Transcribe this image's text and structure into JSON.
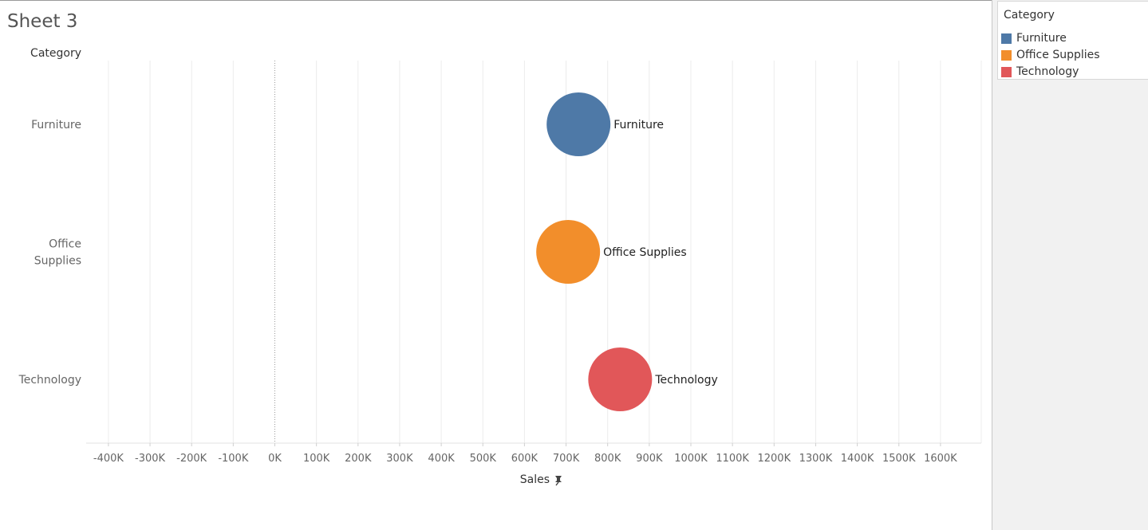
{
  "sheet": {
    "title": "Sheet 3"
  },
  "chart_data": {
    "type": "scatter",
    "row_header": "Category",
    "xlabel": "Sales",
    "xlim": [
      -450000,
      1700000
    ],
    "x_ticks": [
      -400000,
      -300000,
      -200000,
      -100000,
      0,
      100000,
      200000,
      300000,
      400000,
      500000,
      600000,
      700000,
      800000,
      900000,
      1000000,
      1100000,
      1200000,
      1300000,
      1400000,
      1500000,
      1600000
    ],
    "x_tick_labels": [
      "-400K",
      "-300K",
      "-200K",
      "-100K",
      "0K",
      "100K",
      "200K",
      "300K",
      "400K",
      "500K",
      "600K",
      "700K",
      "800K",
      "900K",
      "1000K",
      "1100K",
      "1200K",
      "1300K",
      "1400K",
      "1500K",
      "1600K"
    ],
    "categories": [
      "Furniture",
      "Office Supplies",
      "Technology"
    ],
    "row_labels": [
      [
        "Furniture"
      ],
      [
        "Office",
        "Supplies"
      ],
      [
        "Technology"
      ]
    ],
    "values": [
      730000,
      705000,
      830000
    ],
    "mark_labels": [
      "Furniture",
      "Office Supplies",
      "Technology"
    ],
    "colors": [
      "#4e79a7",
      "#f28e2b",
      "#e15759"
    ],
    "grid": true,
    "pinned_axis_icon": "pin-icon",
    "legend": {
      "title": "Category",
      "position": "right",
      "items": [
        {
          "label": "Furniture",
          "color": "#4e79a7"
        },
        {
          "label": "Office Supplies",
          "color": "#f28e2b"
        },
        {
          "label": "Technology",
          "color": "#e15759"
        }
      ]
    }
  }
}
